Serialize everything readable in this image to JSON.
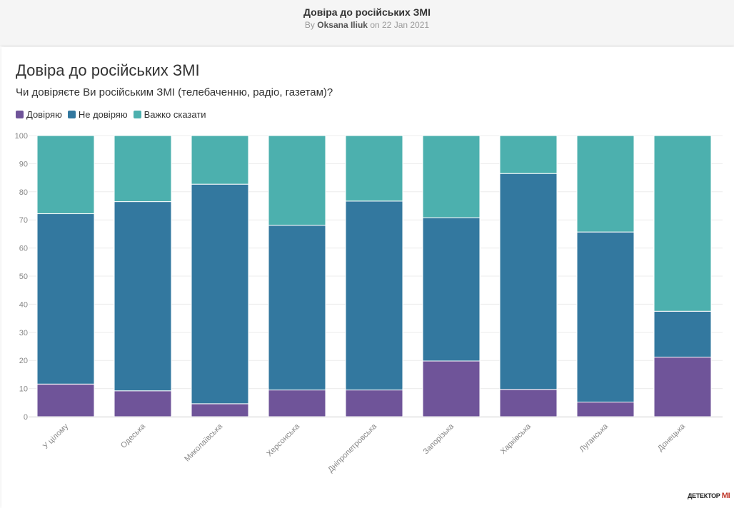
{
  "header": {
    "title": "Довіра до російських ЗМІ",
    "byline_prefix": "By",
    "author": "Oksana Iliuk",
    "date_text": "on 22 Jan 2021"
  },
  "logo_text": "ДЕТЕКТОР МІ",
  "colors": {
    "trust": "#6f5499",
    "distrust": "#33789f",
    "hard_to_say": "#4cb0ae"
  },
  "chart_data": {
    "type": "bar",
    "stacked": true,
    "title": "Довіра до російських ЗМІ",
    "subtitle": "Чи довіряєте Ви російським ЗМІ (телебаченню, радіо, газетам)?",
    "xlabel": "",
    "ylabel": "",
    "ylim": [
      0,
      100
    ],
    "yticks": [
      0,
      10,
      20,
      30,
      40,
      50,
      60,
      70,
      80,
      90,
      100
    ],
    "grid": true,
    "legend_position": "top-left",
    "categories": [
      "У цілому",
      "Одеська",
      "Миколаївська",
      "Херсонська",
      "Дніпропетровська",
      "Запорізька",
      "Харківська",
      "Луганська",
      "Донецька"
    ],
    "series": [
      {
        "name": "Довіряю",
        "color": "#6f5499",
        "values": [
          11.6,
          9.2,
          4.6,
          9.5,
          9.5,
          19.8,
          9.7,
          5.2,
          21.2
        ]
      },
      {
        "name": "Не довіряю",
        "color": "#33789f",
        "values": [
          60.6,
          67.3,
          78.1,
          58.6,
          67.2,
          51.0,
          76.8,
          60.5,
          16.3
        ]
      },
      {
        "name": "Важко сказати",
        "color": "#4cb0ae",
        "values": [
          27.8,
          23.5,
          17.3,
          31.9,
          23.3,
          29.2,
          13.5,
          34.3,
          62.5
        ]
      }
    ]
  }
}
